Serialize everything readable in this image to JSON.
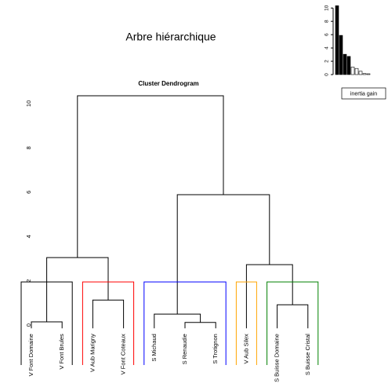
{
  "title": "Arbre hiérarchique",
  "chart_data": [
    {
      "type": "dendrogram",
      "title": "Cluster Dendrogram",
      "leaves": [
        "V Font Domaine",
        "V Font Brules",
        "V Aub Marigny",
        "V Font Coteaux",
        "S Michaud",
        "S Renaudie",
        "S Trotignon",
        "V Aub Silex",
        "S Buisse Domaine",
        "S Buisse Cristal"
      ],
      "merges": [
        {
          "children": [
            -1,
            -2
          ],
          "height": 0.15
        },
        {
          "children": [
            -3,
            -4
          ],
          "height": 1.13
        },
        {
          "children": [
            -6,
            -7
          ],
          "height": 0.12
        },
        {
          "children": [
            -5,
            3
          ],
          "height": 0.5
        },
        {
          "children": [
            -9,
            -10
          ],
          "height": 0.92
        },
        {
          "children": [
            -8,
            5
          ],
          "height": 2.73
        },
        {
          "children": [
            1,
            2
          ],
          "height": 3.05
        },
        {
          "children": [
            4,
            6
          ],
          "height": 5.89
        },
        {
          "children": [
            7,
            8
          ],
          "height": 10.35
        }
      ],
      "cut_height": 1.95,
      "cluster_sizes": [
        2,
        2,
        3,
        1,
        2
      ],
      "cluster_colors": [
        "#000000",
        "#ff0000",
        "#0000ff",
        "#ffa500",
        "#008000"
      ],
      "ylim": [
        -1.8,
        10.6
      ],
      "yticks": [
        0,
        2,
        4,
        6,
        8,
        10
      ]
    },
    {
      "type": "bar",
      "categories": [
        null,
        null,
        null,
        null,
        null,
        null,
        null,
        null,
        null
      ],
      "series": [
        {
          "name": "inertia gain",
          "values": [
            10.35,
            5.89,
            3.05,
            2.73,
            1.13,
            0.92,
            0.5,
            0.15,
            0.12
          ]
        }
      ],
      "bar_colors": [
        "#000000",
        "#000000",
        "#000000",
        "#000000",
        "#ffffff",
        "#ffffff",
        "#ffffff",
        "#ffffff",
        "#ffffff"
      ],
      "ylim": [
        0,
        10.5
      ],
      "yticks": [
        0,
        2,
        4,
        6,
        8,
        10
      ]
    }
  ]
}
